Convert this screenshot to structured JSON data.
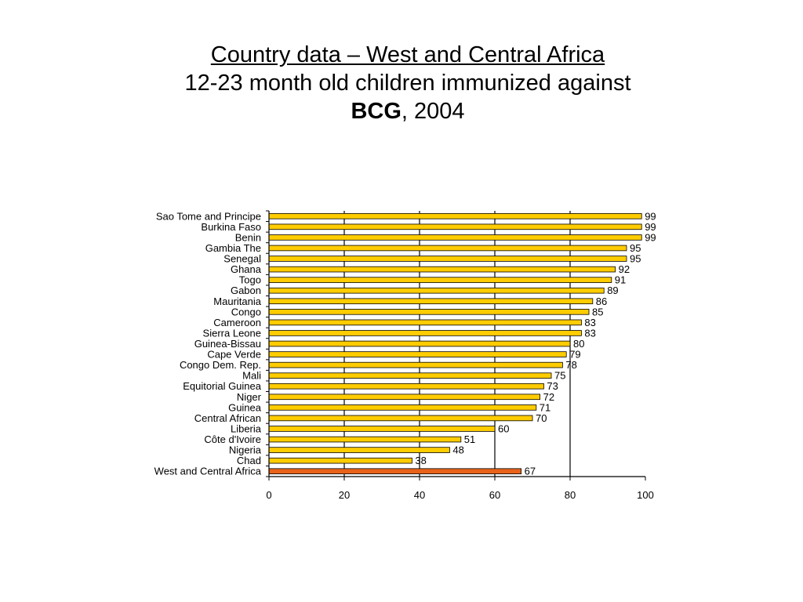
{
  "title": {
    "line1": "Country data – West and Central Africa",
    "line2": "12-23 month old children immunized against",
    "line3_bold": "BCG",
    "line3_rest": ", 2004"
  },
  "chart_data": {
    "type": "bar",
    "orientation": "horizontal",
    "categories": [
      "Sao Tome and Principe",
      "Burkina Faso",
      "Benin",
      "Gambia The",
      "Senegal",
      "Ghana",
      "Togo",
      "Gabon",
      "Mauritania",
      "Congo",
      "Cameroon",
      "Sierra Leone",
      "Guinea-Bissau",
      "Cape Verde",
      "Congo Dem. Rep.",
      "Mali",
      "Equitorial Guinea",
      "Niger",
      "Guinea",
      "Central African",
      "Liberia",
      "Côte d'Ivoire",
      "Nigeria",
      "Chad",
      "West and Central Africa"
    ],
    "values": [
      99,
      99,
      99,
      95,
      95,
      92,
      91,
      89,
      86,
      85,
      83,
      83,
      80,
      79,
      78,
      75,
      73,
      72,
      71,
      70,
      60,
      51,
      48,
      38,
      67
    ],
    "highlight_category": "West and Central Africa",
    "xlim": [
      0,
      100
    ],
    "xticks": [
      0,
      20,
      40,
      60,
      80,
      100
    ],
    "grid": "vertical",
    "data_labels": true,
    "colors": {
      "bar": "#FFCC00",
      "bar_highlight": "#E8621A",
      "bar_outline": "#000000",
      "grid": "#000000"
    }
  }
}
